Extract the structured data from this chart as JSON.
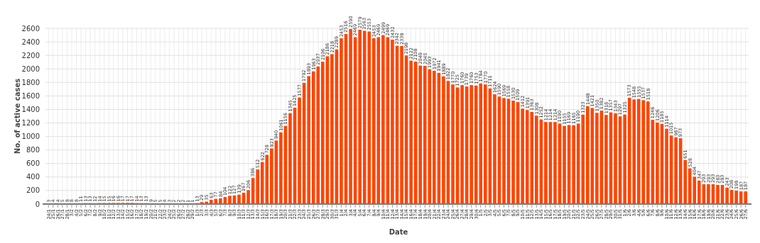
{
  "chart_data": {
    "type": "bar",
    "xlabel": "Date",
    "ylabel": "No. of active cases",
    "categories": [
      "24/1",
      "25/1",
      "26/1",
      "27/1",
      "28/1",
      "3/2",
      "4/2",
      "5/2",
      "6/2",
      "7/2",
      "8/2",
      "9/2",
      "10/2",
      "11/2",
      "12/2",
      "13/2",
      "14/2",
      "15/2",
      "16/2",
      "17/2",
      "18/2",
      "19/2",
      "20/2",
      "21/2",
      "22/2",
      "23/2",
      "24/2",
      "25/2",
      "26/2",
      "27/2",
      "28/2",
      "29/2",
      "1/3",
      "2/3",
      "3/3",
      "4/3",
      "5/3",
      "6/3",
      "7/3",
      "8/3",
      "9/3",
      "10/3",
      "11/3",
      "12/3",
      "13/3",
      "14/3",
      "15/3",
      "16/3",
      "17/3",
      "18/3",
      "19/3",
      "20/3",
      "21/3",
      "22/3",
      "23/3",
      "24/3",
      "25/3",
      "26/3",
      "27/3",
      "28/3",
      "29/3",
      "30/3",
      "31/3",
      "1/4",
      "2/4",
      "3/4",
      "4/4",
      "5/4",
      "6/4",
      "7/4",
      "8/4",
      "9/4",
      "10/4",
      "11/4",
      "12/4",
      "13/4",
      "14/4",
      "15/4",
      "16/4",
      "17/4",
      "18/4",
      "19/4",
      "20/4",
      "21/4",
      "22/4",
      "23/4",
      "24/4",
      "25/4",
      "26/4",
      "27/4",
      "28/4",
      "29/4",
      "30/4",
      "1/5",
      "2/5",
      "3/5",
      "4/5",
      "5/5",
      "6/5",
      "7/5",
      "8/5",
      "9/5",
      "10/5",
      "11/5",
      "12/5",
      "13/5",
      "14/5",
      "15/5",
      "16/5",
      "17/5",
      "18/5",
      "19/5",
      "20/5",
      "21/5",
      "22/5",
      "23/5",
      "24/5",
      "25/5",
      "26/5",
      "27/5",
      "28/5",
      "29/5",
      "30/5",
      "31/5",
      "1/6",
      "2/6",
      "3/6",
      "4/6",
      "5/6",
      "6/6",
      "7/6",
      "8/6",
      "9/6",
      "10/6",
      "11/6",
      "12/6",
      "13/6",
      "14/6",
      "15/6",
      "16/6",
      "17/6",
      "18/6",
      "19/6",
      "20/6",
      "21/6",
      "22/6",
      "23/6",
      "24/6",
      "25/6",
      "26/6",
      "27/6"
    ],
    "values": [
      3,
      4,
      4,
      5,
      8,
      8,
      8,
      11,
      13,
      13,
      12,
      14,
      15,
      15,
      16,
      16,
      17,
      17,
      17,
      14,
      13,
      13,
      9,
      5,
      5,
      4,
      3,
      2,
      2,
      2,
      1,
      1,
      13,
      29,
      35,
      63,
      77,
      84,
      104,
      122,
      127,
      139,
      167,
      206,
      386,
      512,
      622,
      728,
      823,
      940,
      1061,
      1156,
      1345,
      1425,
      1577,
      1792,
      1893,
      1963,
      2037,
      2106,
      2186,
      2218,
      2289,
      2453,
      2516,
      2590,
      2469,
      2579,
      2563,
      2553,
      2453,
      2469,
      2499,
      2469,
      2432,
      2342,
      2338,
      2198,
      2122,
      2108,
      2049,
      2045,
      1993,
      1972,
      1941,
      1889,
      1822,
      1770,
      1725,
      1760,
      1739,
      1760,
      1753,
      1784,
      1770,
      1711,
      1624,
      1590,
      1569,
      1558,
      1530,
      1509,
      1412,
      1391,
      1363,
      1308,
      1252,
      1214,
      1214,
      1214,
      1190,
      1155,
      1169,
      1165,
      1190,
      1323,
      1448,
      1421,
      1350,
      1382,
      1318,
      1357,
      1343,
      1297,
      1325,
      1573,
      1548,
      1555,
      1537,
      1518,
      1246,
      1206,
      1185,
      1114,
      1015,
      987,
      973,
      651,
      528,
      404,
      347,
      293,
      293,
      293,
      283,
      283,
      243,
      208,
      198,
      187,
      187
    ],
    "color": "#ff4500",
    "ylim": [
      0,
      2600
    ],
    "yticks": [
      0,
      200,
      400,
      600,
      800,
      1000,
      1200,
      1400,
      1600,
      1800,
      2000,
      2200,
      2400,
      2600
    ],
    "grid": true,
    "data_labels": true
  }
}
